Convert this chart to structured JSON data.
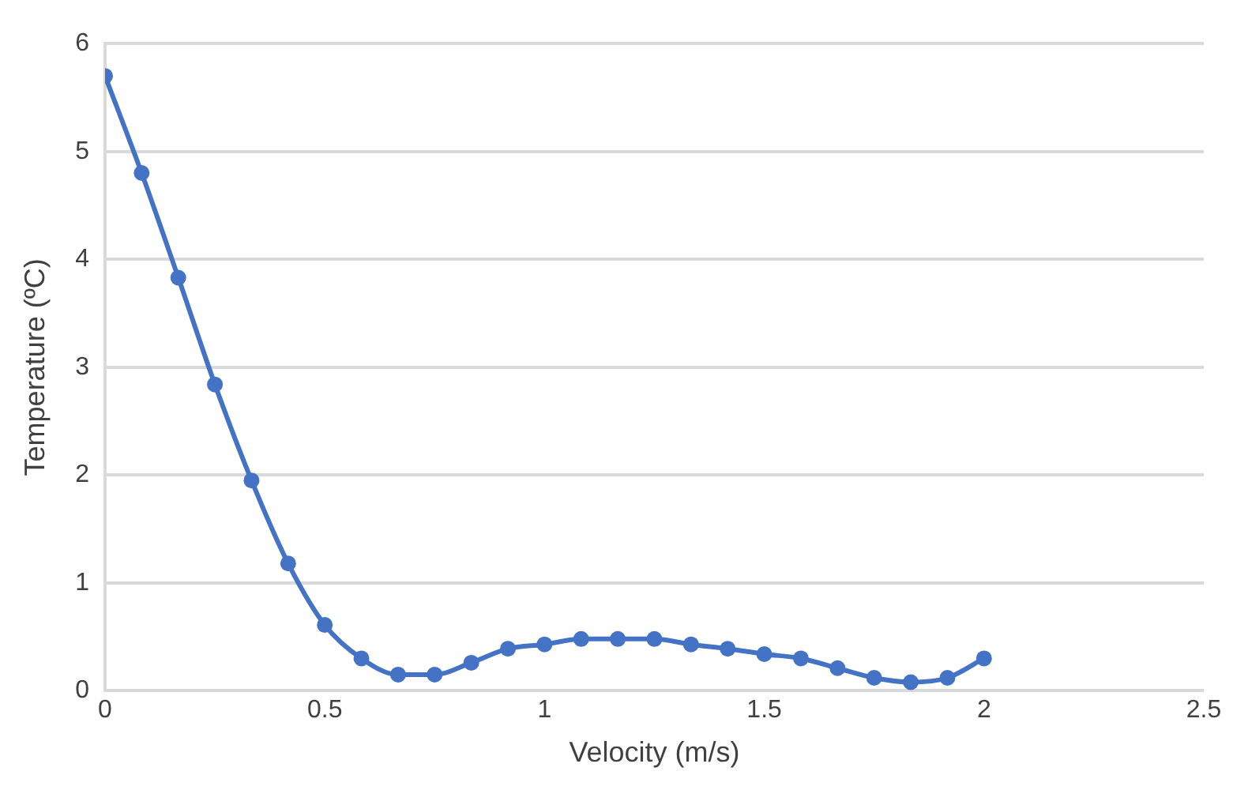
{
  "chart_data": {
    "type": "line",
    "xlabel": "Velocity (m/s)",
    "ylabel": "Temperature (ºC)",
    "x": [
      0,
      0.0833,
      0.1667,
      0.25,
      0.3333,
      0.4167,
      0.5,
      0.5833,
      0.6667,
      0.75,
      0.8333,
      0.9167,
      1,
      1.0833,
      1.1667,
      1.25,
      1.3333,
      1.4167,
      1.5,
      1.5833,
      1.6667,
      1.75,
      1.8333,
      1.9167,
      2
    ],
    "series": [
      {
        "color": "#4472c4",
        "values": [
          5.7,
          4.8,
          3.83,
          2.84,
          1.95,
          1.18,
          0.61,
          0.3,
          0.15,
          0.15,
          0.26,
          0.39,
          0.43,
          0.48,
          0.48,
          0.48,
          0.43,
          0.39,
          0.34,
          0.3,
          0.21,
          0.12,
          0.08,
          0.12,
          0.3
        ]
      }
    ],
    "xlim": [
      0,
      2.5
    ],
    "xticks": [
      0,
      0.5,
      1,
      1.5,
      2,
      2.5
    ],
    "ylim": [
      0,
      6
    ],
    "yticks": [
      0,
      1,
      2,
      3,
      4,
      5,
      6
    ],
    "grid": "y",
    "legend": false,
    "marker": "circle",
    "line_style": "solid"
  }
}
